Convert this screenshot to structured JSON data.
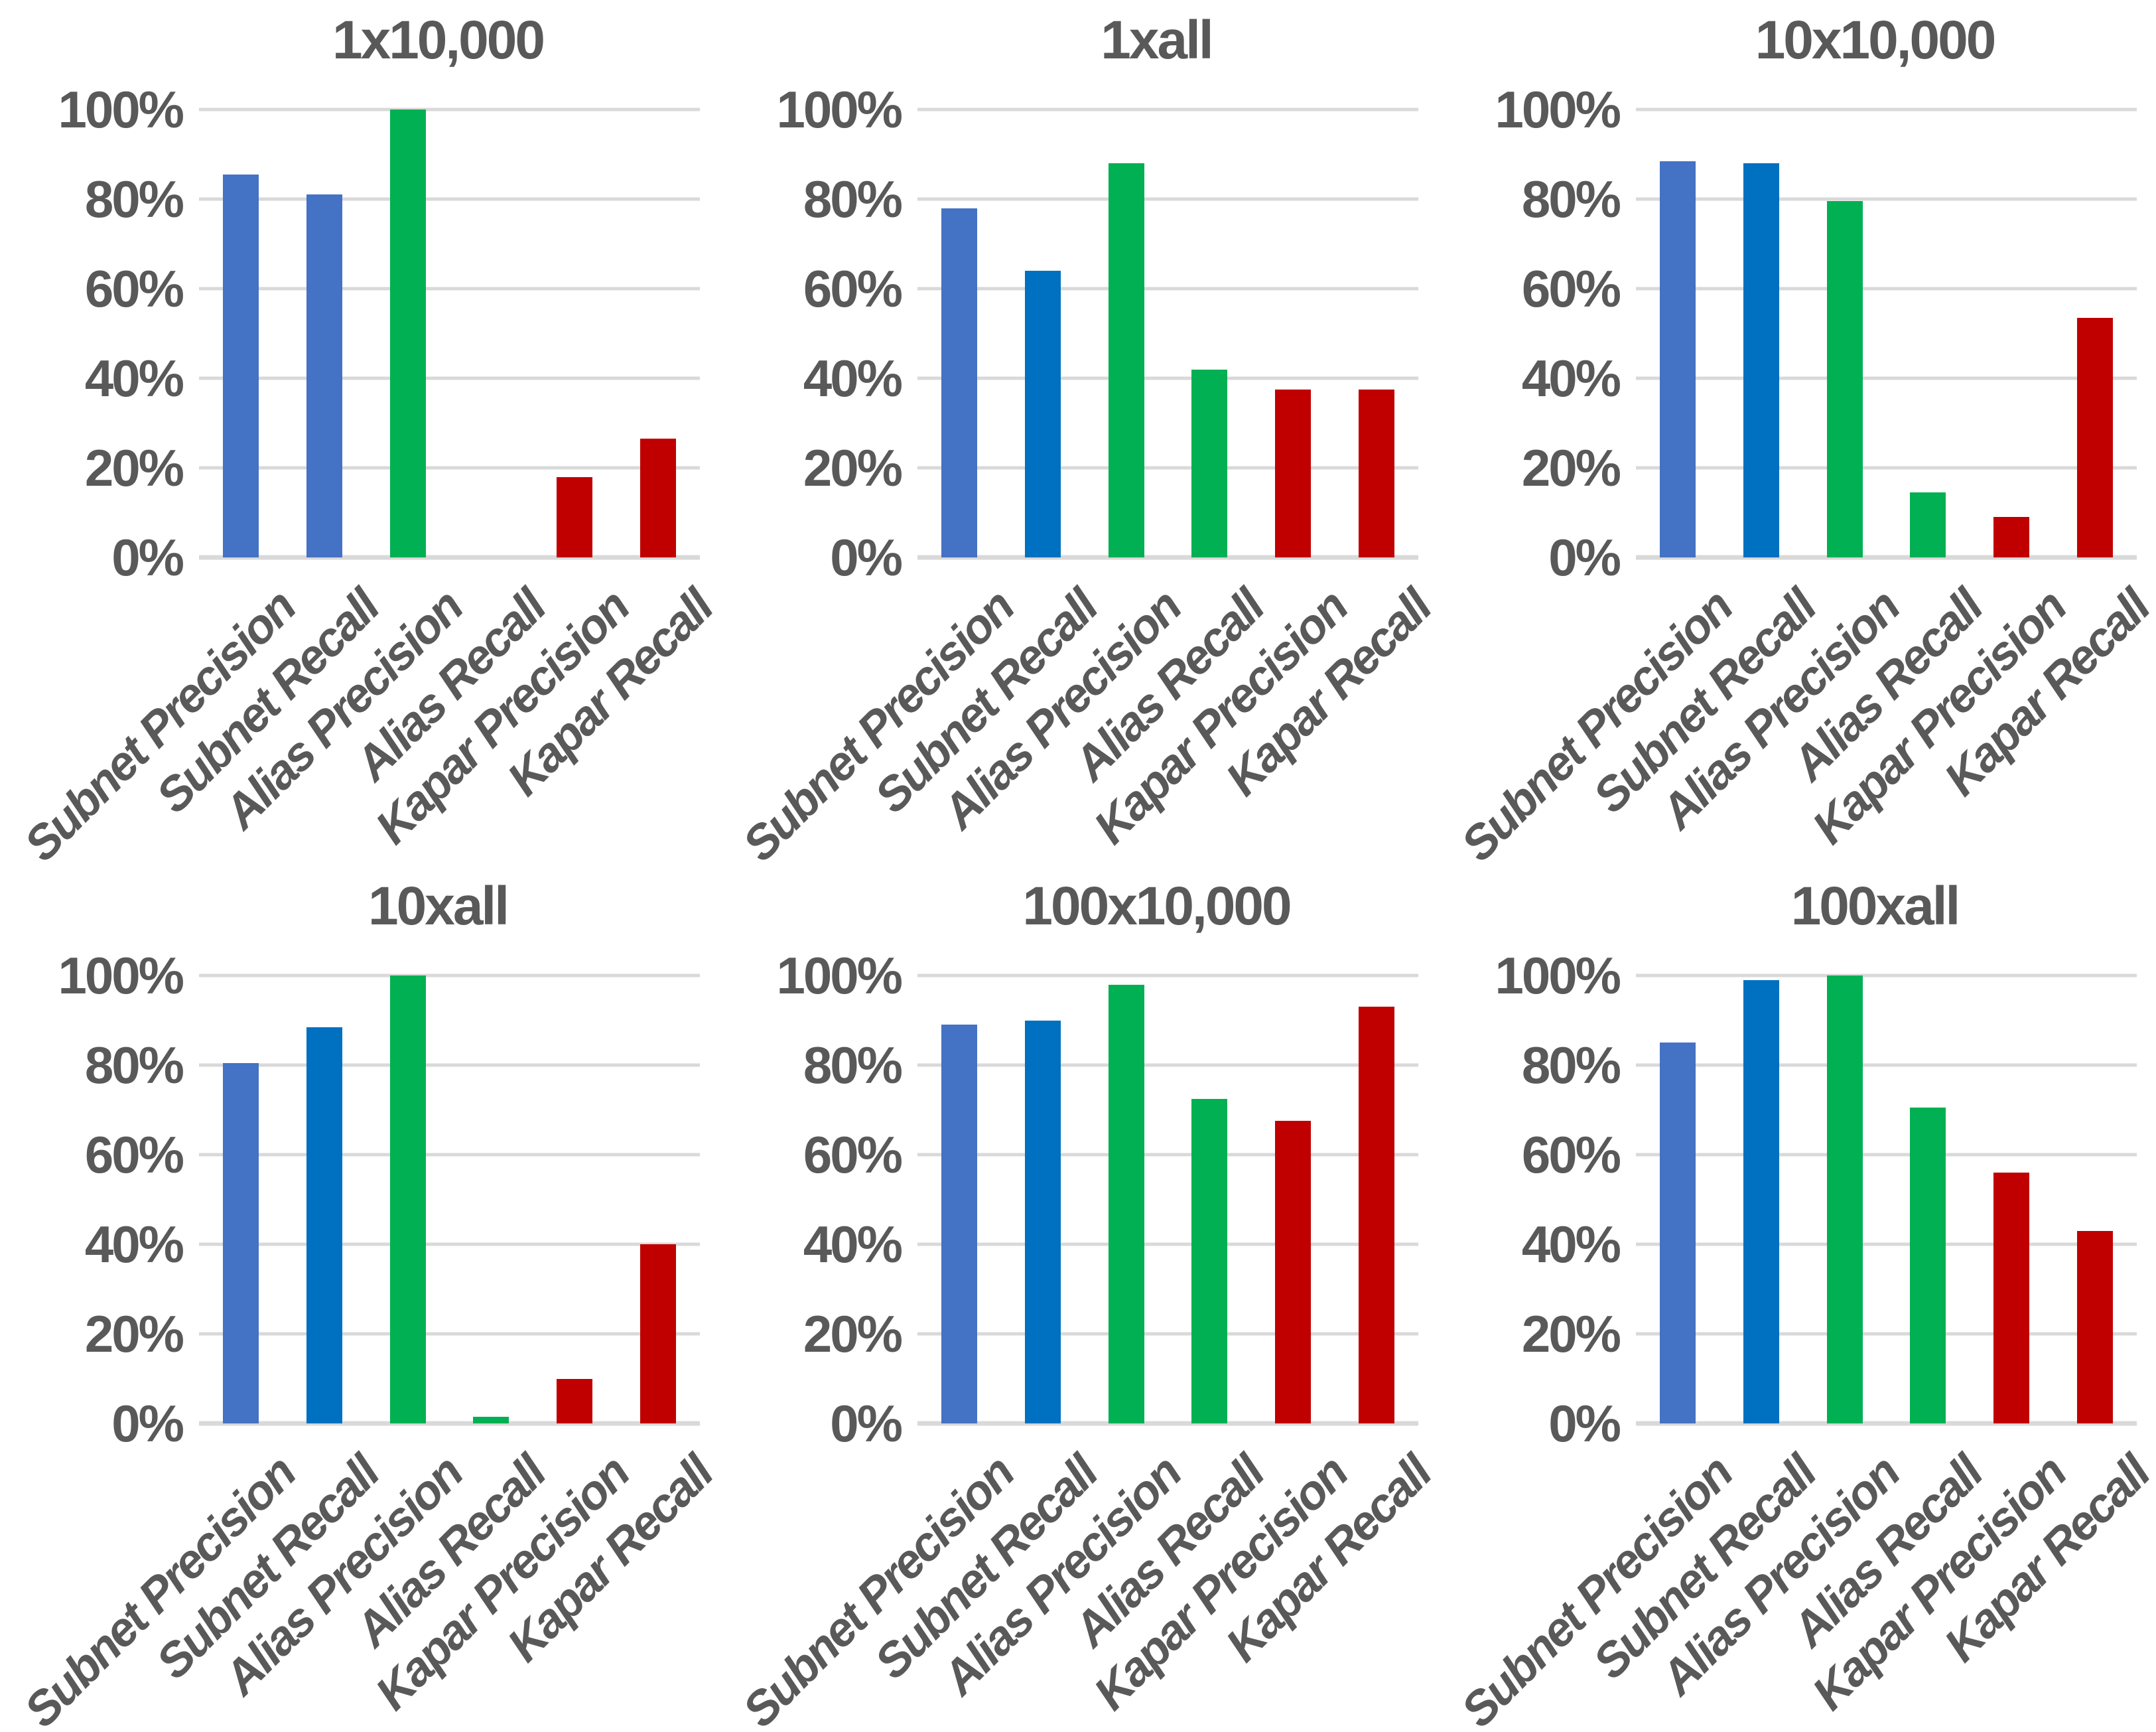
{
  "page": {
    "background": "#FFFFFF"
  },
  "palette": {
    "light_blue": "#4472C4",
    "dark_blue": "#0070C0",
    "green": "#00B052",
    "red": "#C00000",
    "gridline": "#D9D9D9",
    "text": "#595959"
  },
  "y_axis": {
    "ticks": [
      "100%",
      "80%",
      "60%",
      "40%",
      "20%",
      "0%"
    ],
    "min": 0,
    "max": 100,
    "interval": 20
  },
  "chart_data": [
    {
      "type": "bar",
      "title": "1x10,000",
      "categories": [
        "Subnet Precision",
        "Subnet Recall",
        "Alias Precision",
        "Alias Recall",
        "Kapar Precision",
        "Kapar Recall"
      ],
      "values": [
        85.5,
        81,
        100,
        0,
        18,
        26.5
      ],
      "bar_colors": [
        "light_blue",
        "light_blue",
        "green",
        "green",
        "red",
        "red"
      ],
      "xlabel": "",
      "ylabel": "",
      "ylim": [
        0,
        100
      ],
      "grid": true,
      "legend": "none"
    },
    {
      "type": "bar",
      "title": "1xall",
      "categories": [
        "Subnet Precision",
        "Subnet Recall",
        "Alias Precision",
        "Alias Recall",
        "Kapar Precision",
        "Kapar Recall"
      ],
      "values": [
        78,
        64,
        88,
        42,
        37.5,
        37.5
      ],
      "bar_colors": [
        "light_blue",
        "dark_blue",
        "green",
        "green",
        "red",
        "red"
      ],
      "xlabel": "",
      "ylabel": "",
      "ylim": [
        0,
        100
      ],
      "grid": true,
      "legend": "none"
    },
    {
      "type": "bar",
      "title": "10x10,000",
      "categories": [
        "Subnet Precision",
        "Subnet Recall",
        "Alias Precision",
        "Alias Recall",
        "Kapar Precision",
        "Kapar Recall"
      ],
      "values": [
        88.5,
        88,
        79.5,
        14.5,
        9,
        53.5
      ],
      "bar_colors": [
        "light_blue",
        "dark_blue",
        "green",
        "green",
        "red",
        "red"
      ],
      "xlabel": "",
      "ylabel": "",
      "ylim": [
        0,
        100
      ],
      "grid": true,
      "legend": "none"
    },
    {
      "type": "bar",
      "title": "10xall",
      "categories": [
        "Subnet Precision",
        "Subnet Recall",
        "Alias Precision",
        "Alias Recall",
        "Kapar Precision",
        "Kapar Recall"
      ],
      "values": [
        80.5,
        88.5,
        100,
        1.5,
        10,
        40
      ],
      "bar_colors": [
        "light_blue",
        "dark_blue",
        "green",
        "green",
        "red",
        "red"
      ],
      "xlabel": "",
      "ylabel": "",
      "ylim": [
        0,
        100
      ],
      "grid": true,
      "legend": "none"
    },
    {
      "type": "bar",
      "title": "100x10,000",
      "categories": [
        "Subnet Precision",
        "Subnet Recall",
        "Alias Precision",
        "Alias Recall",
        "Kapar Precision",
        "Kapar Recall"
      ],
      "values": [
        89,
        90,
        98,
        72.5,
        67.5,
        93
      ],
      "bar_colors": [
        "light_blue",
        "dark_blue",
        "green",
        "green",
        "red",
        "red"
      ],
      "xlabel": "",
      "ylabel": "",
      "ylim": [
        0,
        100
      ],
      "grid": true,
      "legend": "none"
    },
    {
      "type": "bar",
      "title": "100xall",
      "categories": [
        "Subnet Precision",
        "Subnet Recall",
        "Alias Precision",
        "Alias Recall",
        "Kapar Precision",
        "Kapar Recall"
      ],
      "values": [
        85,
        99,
        100,
        70.5,
        56,
        43
      ],
      "bar_colors": [
        "light_blue",
        "dark_blue",
        "green",
        "green",
        "red",
        "red"
      ],
      "xlabel": "",
      "ylabel": "",
      "ylim": [
        0,
        100
      ],
      "grid": true,
      "legend": "none"
    }
  ]
}
